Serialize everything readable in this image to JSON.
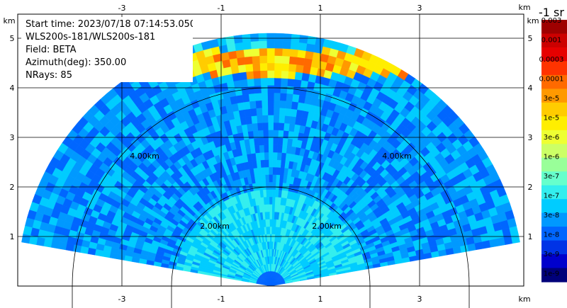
{
  "info": {
    "start_time": "Start time: 2023/07/18 07:14:53.050",
    "system": "WLS200s-181/WLS200s-181",
    "field": "Field: BETA",
    "azimuth": "Azimuth(deg): 350.00",
    "nrays": "NRays: 85"
  },
  "axes": {
    "unit": "km",
    "x_ticks": [
      "-3",
      "-1",
      "1",
      "3"
    ],
    "x_tick_values": [
      -3,
      -1,
      1,
      3
    ],
    "y_ticks": [
      "1",
      "2",
      "3",
      "4",
      "5"
    ],
    "y_tick_values": [
      1,
      2,
      3,
      4,
      5
    ],
    "xlim": [
      -5.0,
      4.9
    ],
    "ylim": [
      0,
      5.9
    ],
    "range_rings": [
      {
        "radius_km": 2,
        "label": "2.00km"
      },
      {
        "radius_km": 4,
        "label": "4.00km"
      }
    ],
    "max_range_km": 5.1
  },
  "colorbar": {
    "title": "-1 sr",
    "labels": [
      "0.003",
      "0.001",
      "0.0003",
      "0.0001",
      "3e-5",
      "1e-5",
      "3e-6",
      "1e-6",
      "3e-7",
      "1e-7",
      "3e-8",
      "1e-8",
      "3e-9",
      "1e-9"
    ],
    "colors": [
      "#9e0000",
      "#cc0000",
      "#e60000",
      "#ff3300",
      "#ff6a00",
      "#ff9900",
      "#ffcc00",
      "#ffee00",
      "#eeff33",
      "#ccff66",
      "#99ff99",
      "#66ffcc",
      "#33eeee",
      "#00ccff",
      "#0099ff",
      "#0066ff",
      "#0033e6",
      "#0000cc",
      "#00007a"
    ]
  }
}
